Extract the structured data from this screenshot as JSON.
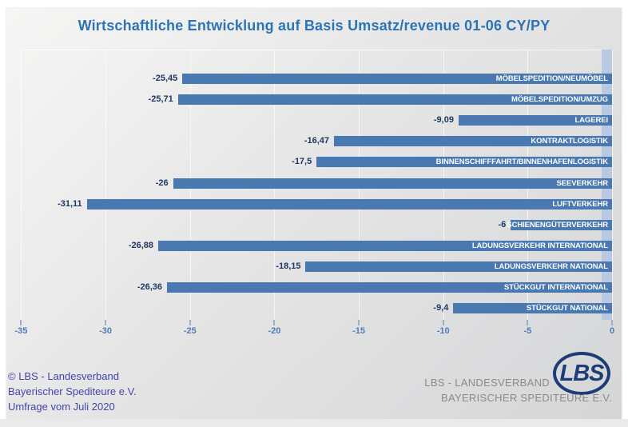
{
  "title": "Wirtschaftliche Entwicklung auf Basis Umsatz/revenue 01-06 CY/PY",
  "chart_data": {
    "type": "bar",
    "orientation": "horizontal",
    "title": "Wirtschaftliche Entwicklung auf Basis Umsatz/revenue 01-06 CY/PY",
    "categories": [
      "MÖBELSPEDITION/NEUMÖBEL",
      "MÖBELSPEDITION/UMZUG",
      "LAGEREI",
      "KONTRAKTLOGISTIK",
      "BINNENSCHIFFFAHRT/BINNENHAFENLOGISTIK",
      "SEEVERKEHR",
      "LUFTVERKEHR",
      "SCHIENENGÜTERVERKEHR",
      "LADUNGSVERKEHR INTERNATIONAL",
      "LADUNGSVERKEHR NATIONAL",
      "STÜCKGUT INTERNATIONAL",
      "STÜCKGUT NATIONAL"
    ],
    "values": [
      -25.45,
      -25.71,
      -9.09,
      -16.47,
      -17.5,
      -26,
      -31.11,
      -6,
      -26.88,
      -18.15,
      -26.36,
      -9.4
    ],
    "value_labels": [
      "-25,45",
      "-25,71",
      "-9,09",
      "-16,47",
      "-17,5",
      "-26",
      "-31,11",
      "-6",
      "-26,88",
      "-18,15",
      "-26,36",
      "-9,4"
    ],
    "xlim": [
      -35,
      0
    ],
    "x_tick_values": [
      -35,
      -30,
      -25,
      -20,
      -15,
      -10,
      -5,
      0
    ],
    "x_tick_labels": [
      "-35",
      "-30",
      "-25",
      "-20",
      "-15",
      "-10",
      "-5",
      "0"
    ],
    "grid": "vertical-gridlines-on",
    "legend": "none",
    "xlabel": "",
    "ylabel": ""
  },
  "colors": {
    "bar": "#4a78b1",
    "zero_band": "#b9c9e2",
    "title": "#2e74b5",
    "value_label": "#1f3864",
    "tick_label": "#4d7cb8",
    "copyright_text": "#4343af",
    "logo_navy": "#1e3c78",
    "logo_gray": "#8a8a8a"
  },
  "footer": {
    "copyright_line1": "© LBS - Landesverband",
    "copyright_line2": "Bayerischer Spediteure e.V.",
    "copyright_line3": "Umfrage vom Juli 2020"
  },
  "logo": {
    "monogram": "LBS",
    "line1": "LBS - LANDESVERBAND",
    "line2": "BAYERISCHER SPEDITEURE E.V."
  }
}
